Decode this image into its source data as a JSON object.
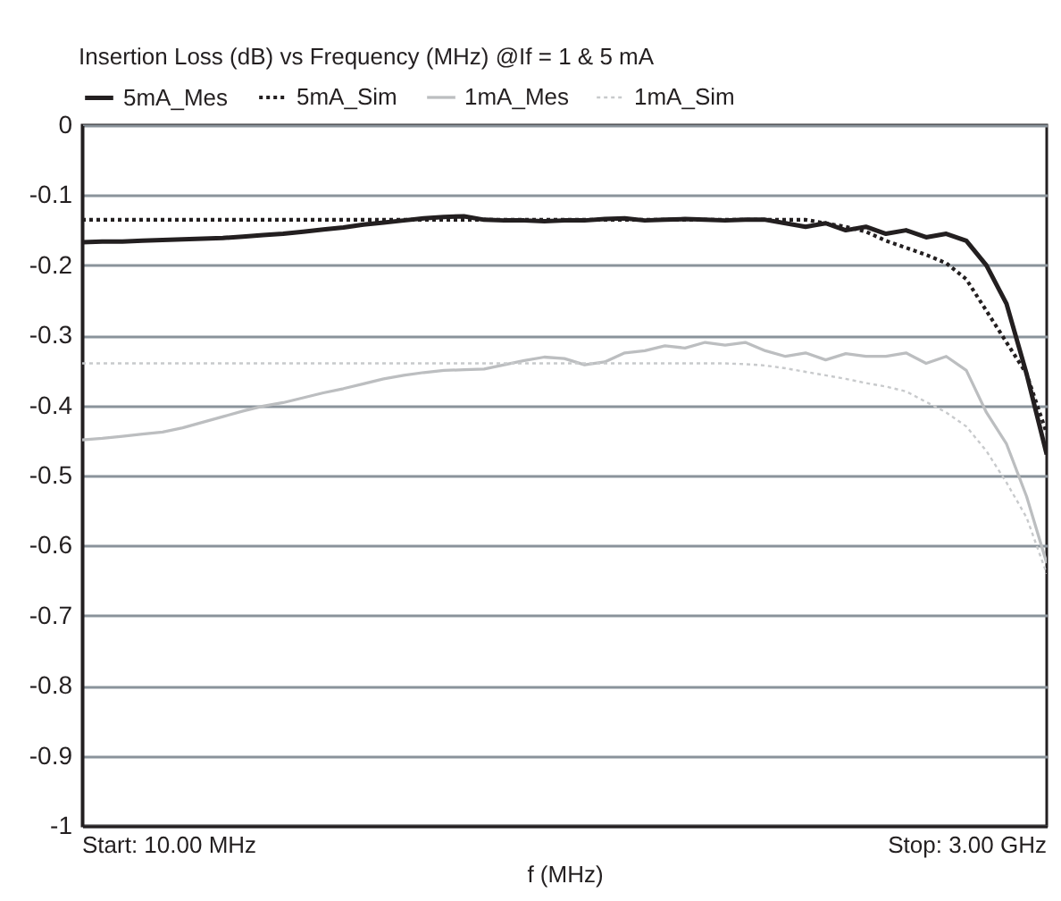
{
  "chart_data": {
    "type": "line",
    "title": "Insertion Loss (dB) vs Frequency (MHz) @If = 1 & 5 mA",
    "xlabel": "f (MHz)",
    "annotations": [
      "Start: 10.00 MHz",
      "Stop: 3.00 GHz"
    ],
    "grid": "y",
    "legend": "top left",
    "categories": [
      null,
      null,
      null,
      null,
      null,
      null,
      null,
      null,
      null,
      null,
      null,
      null,
      null,
      null,
      null,
      null,
      null,
      null,
      null,
      null,
      null,
      null,
      null,
      null,
      null,
      null,
      null,
      null,
      null,
      null,
      null,
      null,
      null,
      null,
      null,
      null,
      null,
      null,
      null,
      null,
      null,
      null,
      null,
      null,
      null,
      null,
      null,
      null,
      null
    ],
    "ylim": [
      -1,
      0
    ],
    "yticks": [
      -1,
      -0.9,
      -0.8,
      -0.7,
      -0.6,
      -0.5,
      -0.4,
      -0.3,
      -0.2,
      -0.1,
      0
    ],
    "series": [
      {
        "name": "5mA_Mes",
        "color": "#231f20",
        "line_style": "solid",
        "values": [
          -0.167,
          -0.166,
          -0.166,
          -0.165,
          -0.164,
          -0.163,
          -0.162,
          -0.161,
          -0.159,
          -0.157,
          -0.155,
          -0.152,
          -0.149,
          -0.146,
          -0.142,
          -0.139,
          -0.136,
          -0.133,
          -0.131,
          -0.13,
          -0.135,
          -0.136,
          -0.136,
          -0.137,
          -0.136,
          -0.136,
          -0.134,
          -0.133,
          -0.136,
          -0.135,
          -0.134,
          -0.135,
          -0.136,
          -0.135,
          -0.135,
          -0.14,
          -0.145,
          -0.14,
          -0.15,
          -0.145,
          -0.155,
          -0.15,
          -0.16,
          -0.155,
          -0.165,
          -0.2,
          -0.255,
          -0.355,
          -0.47
        ]
      },
      {
        "name": "5mA_Sim",
        "color": "#231f20",
        "line_style": "dotted",
        "values": [
          -0.135,
          -0.135,
          -0.135,
          -0.135,
          -0.135,
          -0.135,
          -0.135,
          -0.135,
          -0.135,
          -0.135,
          -0.135,
          -0.135,
          -0.135,
          -0.135,
          -0.135,
          -0.135,
          -0.135,
          -0.135,
          -0.135,
          -0.135,
          -0.135,
          -0.135,
          -0.135,
          -0.135,
          -0.135,
          -0.135,
          -0.135,
          -0.135,
          -0.135,
          -0.135,
          -0.135,
          -0.135,
          -0.135,
          -0.135,
          -0.135,
          -0.135,
          -0.135,
          -0.14,
          -0.145,
          -0.152,
          -0.165,
          -0.175,
          -0.185,
          -0.197,
          -0.22,
          -0.265,
          -0.31,
          -0.355,
          -0.44
        ]
      },
      {
        "name": "1mA_Mes",
        "color": "#bcbec0",
        "line_style": "solid",
        "values": [
          -0.449,
          -0.447,
          -0.444,
          -0.441,
          -0.438,
          -0.432,
          -0.424,
          -0.416,
          -0.408,
          -0.401,
          -0.396,
          -0.389,
          -0.382,
          -0.376,
          -0.369,
          -0.362,
          -0.357,
          -0.353,
          -0.35,
          -0.349,
          -0.348,
          -0.342,
          -0.336,
          -0.331,
          -0.333,
          -0.342,
          -0.338,
          -0.325,
          -0.322,
          -0.315,
          -0.318,
          -0.31,
          -0.314,
          -0.31,
          -0.322,
          -0.33,
          -0.325,
          -0.335,
          -0.326,
          -0.33,
          -0.33,
          -0.325,
          -0.34,
          -0.33,
          -0.35,
          -0.41,
          -0.455,
          -0.53,
          -0.625
        ]
      },
      {
        "name": "1mA_Sim",
        "color": "#c8cacc",
        "line_style": "dotted",
        "values": [
          -0.34,
          -0.34,
          -0.34,
          -0.34,
          -0.34,
          -0.34,
          -0.34,
          -0.34,
          -0.34,
          -0.34,
          -0.34,
          -0.34,
          -0.34,
          -0.34,
          -0.34,
          -0.34,
          -0.34,
          -0.34,
          -0.34,
          -0.34,
          -0.34,
          -0.34,
          -0.34,
          -0.34,
          -0.34,
          -0.34,
          -0.34,
          -0.34,
          -0.34,
          -0.34,
          -0.34,
          -0.34,
          -0.34,
          -0.341,
          -0.343,
          -0.347,
          -0.352,
          -0.357,
          -0.362,
          -0.368,
          -0.373,
          -0.38,
          -0.395,
          -0.41,
          -0.43,
          -0.465,
          -0.51,
          -0.56,
          -0.64
        ]
      }
    ]
  }
}
